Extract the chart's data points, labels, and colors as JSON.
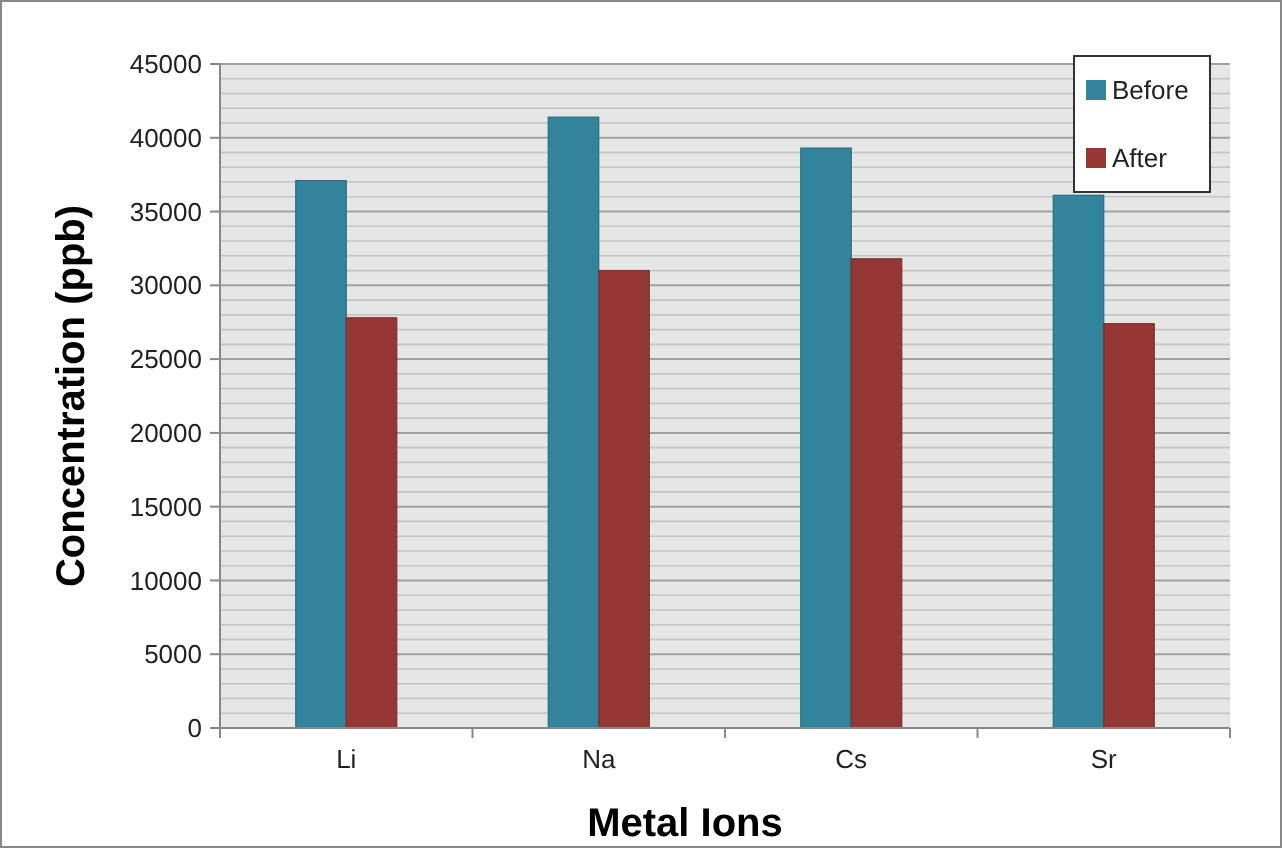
{
  "chart_data": {
    "type": "bar",
    "xlabel": "Metal Ions",
    "ylabel": "Concentration (ppb)",
    "categories": [
      "Li",
      "Na",
      "Cs",
      "Sr"
    ],
    "series": [
      {
        "name": "Before",
        "color": "#31849b",
        "values": [
          37100,
          41400,
          39300,
          36100
        ]
      },
      {
        "name": "After",
        "color": "#953735",
        "values": [
          27800,
          31000,
          31800,
          27400
        ]
      }
    ],
    "ylim": [
      0,
      45000
    ],
    "yticks": [
      0,
      {
        "value": 1000,
        "label": null
      },
      {
        "value": 2000,
        "label": null
      },
      {
        "value": 3000,
        "label": null
      },
      {
        "value": 4000,
        "label": null
      },
      5000,
      {
        "value": 6000,
        "label": null
      },
      {
        "value": 7000,
        "label": null
      },
      {
        "value": 8000,
        "label": null
      },
      {
        "value": 9000,
        "label": null
      },
      10000,
      {
        "value": 11000,
        "label": null
      },
      {
        "value": 12000,
        "label": null
      },
      {
        "value": 13000,
        "label": null
      },
      {
        "value": 14000,
        "label": null
      },
      15000,
      {
        "value": 16000,
        "label": null
      },
      {
        "value": 17000,
        "label": null
      },
      {
        "value": 18000,
        "label": null
      },
      {
        "value": 19000,
        "label": null
      },
      20000,
      {
        "value": 21000,
        "label": null
      },
      {
        "value": 22000,
        "label": null
      },
      {
        "value": 23000,
        "label": null
      },
      {
        "value": 24000,
        "label": null
      },
      25000,
      {
        "value": 26000,
        "label": null
      },
      {
        "value": 27000,
        "label": null
      },
      {
        "value": 28000,
        "label": null
      },
      {
        "value": 29000,
        "label": null
      },
      30000,
      {
        "value": 31000,
        "label": null
      },
      {
        "value": 32000,
        "label": null
      },
      {
        "value": 33000,
        "label": null
      },
      {
        "value": 34000,
        "label": null
      },
      35000,
      {
        "value": 36000,
        "label": null
      },
      {
        "value": 37000,
        "label": null
      },
      {
        "value": 38000,
        "label": null
      },
      {
        "value": 39000,
        "label": null
      },
      40000,
      {
        "value": 41000,
        "label": null
      },
      {
        "value": 42000,
        "label": null
      },
      {
        "value": 43000,
        "label": null
      },
      {
        "value": 44000,
        "label": null
      },
      45000
    ],
    "grid": true,
    "legend": "top right"
  }
}
